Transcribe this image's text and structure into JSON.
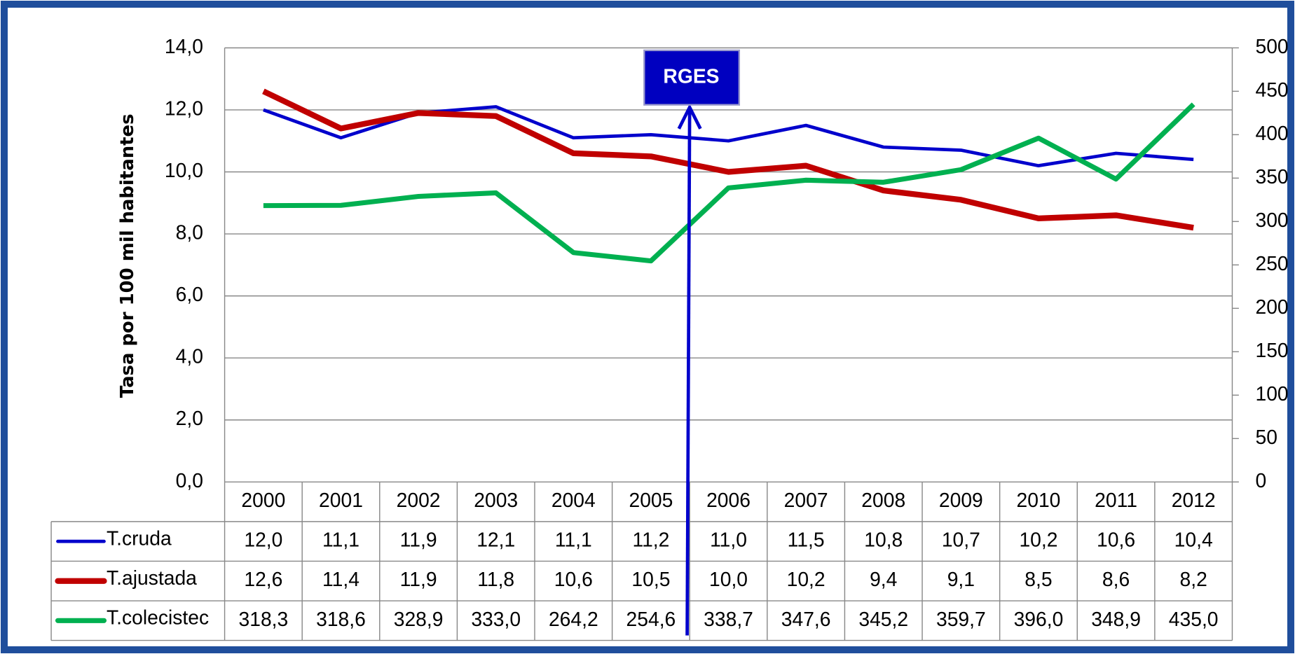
{
  "chart_data": {
    "type": "line",
    "y_label": "Tasa por 100 mil habitantes",
    "annotation": "RGES",
    "categories": [
      "2000",
      "2001",
      "2002",
      "2003",
      "2004",
      "2005",
      "2006",
      "2007",
      "2008",
      "2009",
      "2010",
      "2011",
      "2012"
    ],
    "series": [
      {
        "name": "T.cruda",
        "color": "#0000cc",
        "values": [
          12.0,
          11.1,
          11.9,
          12.1,
          11.1,
          11.2,
          11.0,
          11.5,
          10.8,
          10.7,
          10.2,
          10.6,
          10.4
        ],
        "value_labels": [
          "12,0",
          "11,1",
          "11,9",
          "12,1",
          "11,1",
          "11,2",
          "11,0",
          "11,5",
          "10,8",
          "10,7",
          "10,2",
          "10,6",
          "10,4"
        ]
      },
      {
        "name": "T.ajustada",
        "color": "#c00000",
        "values": [
          12.6,
          11.4,
          11.9,
          11.8,
          10.6,
          10.5,
          10.0,
          10.2,
          9.4,
          9.1,
          8.5,
          8.6,
          8.2
        ],
        "value_labels": [
          "12,6",
          "11,4",
          "11,9",
          "11,8",
          "10,6",
          "10,5",
          "10,0",
          "10,2",
          "9,4",
          "9,1",
          "8,5",
          "8,6",
          "8,2"
        ]
      },
      {
        "name": "T.colecistec",
        "color": "#00b050",
        "axis": "y2",
        "values": [
          318.3,
          318.6,
          328.9,
          333.0,
          264.2,
          254.6,
          338.7,
          347.6,
          345.2,
          359.7,
          396.0,
          348.9,
          435.0
        ],
        "value_labels": [
          "318,3",
          "318,6",
          "328,9",
          "333,0",
          "264,2",
          "254,6",
          "338,7",
          "347,6",
          "345,2",
          "359,7",
          "396,0",
          "348,9",
          "435,0"
        ]
      }
    ],
    "ylim": [
      0,
      14
    ],
    "yticks": [
      {
        "value": 0,
        "label": "0,0"
      },
      {
        "value": 2,
        "label": "2,0"
      },
      {
        "value": 4,
        "label": "4,0"
      },
      {
        "value": 6,
        "label": "6,0"
      },
      {
        "value": 8,
        "label": "8,0"
      },
      {
        "value": 10,
        "label": "10,0"
      },
      {
        "value": 12,
        "label": "12,0"
      },
      {
        "value": 14,
        "label": "14,0"
      }
    ],
    "y2lim": [
      0,
      500
    ],
    "y2ticks": [
      0,
      50,
      100,
      150,
      200,
      250,
      300,
      350,
      400,
      450,
      500
    ],
    "grid": true
  }
}
